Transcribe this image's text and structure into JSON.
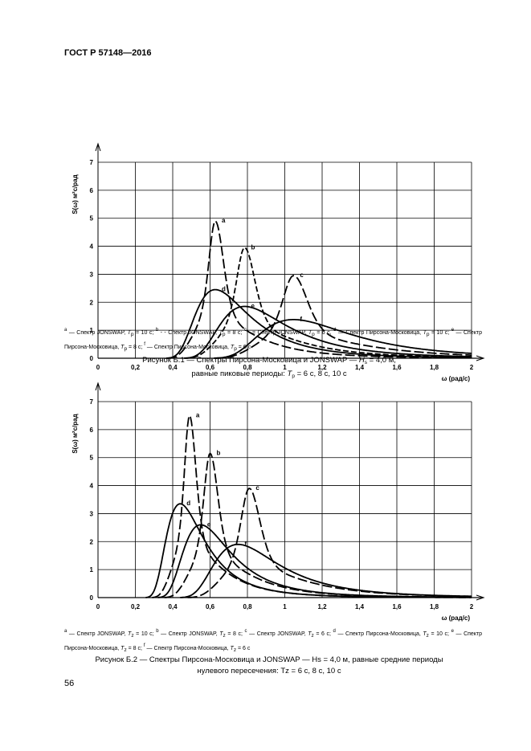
{
  "header": "ГОСТ Р 57148—2016",
  "page_number": "56",
  "figures": [
    {
      "notes": [
        {
          "mark": "a",
          "text": "— Спектр JONSWAP, ",
          "var": "T",
          "sub": "p",
          "val": " = 10 с; "
        },
        {
          "mark": "b",
          "text": "- - Спектр JONSWAP, ",
          "var": "T",
          "sub": "p",
          "val": " = 8 с; "
        },
        {
          "mark": "c",
          "text": "-·= Спектр JONSWAP, ",
          "var": "T",
          "sub": "p",
          "val": " = 6 с, "
        },
        {
          "mark": "d",
          "text": "— Спектр Пирсона-Московица, ",
          "var": "T",
          "sub": "p",
          "val": " = 10 с; "
        },
        {
          "mark": "e",
          "text": "— Спектр Пирсона-Московица, ",
          "var": "T",
          "sub": "p",
          "val": " = 8 с; "
        },
        {
          "mark": "f",
          "text": "— Спектр Пирсона-Московица, ",
          "var": "T",
          "sub": "p",
          "val": " = 6 с"
        }
      ],
      "caption_line1": "Рисунок Б.1 — Спектры Пирсона-Московица и JONSWAP — ",
      "caption_hs": "H",
      "caption_hs_sub": "s",
      "caption_hs_val": " = 4,0 м,",
      "caption_line2a": "равные пиковые периоды: ",
      "caption_tp": "T",
      "caption_tp_sub": "p",
      "caption_line2b": " = 6 с, 8 с, 10 с"
    },
    {
      "notes": [
        {
          "mark": "a",
          "text": "— Спектр JONSWAP, ",
          "var": "T",
          "sub": "z",
          "val": " = 10 с; "
        },
        {
          "mark": "b",
          "text": "— Спектр JONSWAP, ",
          "var": "T",
          "sub": "z",
          "val": " = 8 с; "
        },
        {
          "mark": "c",
          "text": "— Спектр JONSWAP, ",
          "var": "T",
          "sub": "z",
          "val": " = 6 с; "
        },
        {
          "mark": "d",
          "text": "— Спектр Пирсона-Московица, ",
          "var": "T",
          "sub": "z",
          "val": " = 10 с; "
        },
        {
          "mark": "e",
          "text": "— Спектр Пирсона-Московица, ",
          "var": "T",
          "sub": "z",
          "val": " = 8 с; "
        },
        {
          "mark": "f",
          "text": "— Спектр Пирсона-Московица, ",
          "var": "T",
          "sub": "z",
          "val": " = 6 с"
        }
      ],
      "caption_line1": "Рисунок Б.2 — Спектры Пирсона-Московица и JONSWAP — Hs = 4,0 м, равные средние периоды",
      "caption_line2": "нулевого пересечения: Tz = 6 с, 8 с, 10 с"
    }
  ],
  "chart_data": [
    {
      "type": "line",
      "ylabel": "S(ω) м²с/рад",
      "xlabel": "ω (рад/с)",
      "xlim": [
        0,
        2
      ],
      "ylim": [
        0,
        7
      ],
      "x_ticks": [
        "0",
        "0,2",
        "0,4",
        "0,6",
        "0,8",
        "1",
        "1,2",
        "1,4",
        "1,6",
        "1,8",
        "2"
      ],
      "y_ticks": [
        "0",
        "1",
        "2",
        "3",
        "4",
        "5",
        "6",
        "7"
      ],
      "grid": true,
      "series": [
        {
          "name": "a",
          "kind": "jonswap",
          "peak_omega": 0.628,
          "peak_value": 4.9,
          "dash": "long"
        },
        {
          "name": "b",
          "kind": "jonswap",
          "peak_omega": 0.785,
          "peak_value": 3.95,
          "dash": "medium"
        },
        {
          "name": "c",
          "kind": "jonswap",
          "peak_omega": 1.047,
          "peak_value": 2.95,
          "dash": "long"
        },
        {
          "name": "d",
          "kind": "pm",
          "peak_omega": 0.628,
          "peak_value": 2.45,
          "dash": "solid"
        },
        {
          "name": "e",
          "kind": "pm",
          "peak_omega": 0.785,
          "peak_value": 1.85,
          "dash": "solid"
        },
        {
          "name": "f",
          "kind": "pm",
          "peak_omega": 1.047,
          "peak_value": 1.38,
          "dash": "solid"
        }
      ]
    },
    {
      "type": "line",
      "ylabel": "S(ω) м²с/рад",
      "xlabel": "ω (рад/с)",
      "xlim": [
        0,
        2
      ],
      "ylim": [
        0,
        7
      ],
      "x_ticks": [
        "0",
        "0,2",
        "0,4",
        "0,6",
        "0,8",
        "1",
        "1,2",
        "1,4",
        "1,6",
        "1,8",
        "2"
      ],
      "y_ticks": [
        "0",
        "1",
        "2",
        "3",
        "4",
        "5",
        "6",
        "7"
      ],
      "grid": true,
      "series": [
        {
          "name": "a",
          "kind": "jonswap",
          "peak_omega": 0.49,
          "peak_value": 6.5,
          "dash": "long"
        },
        {
          "name": "b",
          "kind": "jonswap",
          "peak_omega": 0.6,
          "peak_value": 5.15,
          "dash": "long"
        },
        {
          "name": "c",
          "kind": "jonswap",
          "peak_omega": 0.81,
          "peak_value": 3.9,
          "dash": "long"
        },
        {
          "name": "d",
          "kind": "pm",
          "peak_omega": 0.44,
          "peak_value": 3.35,
          "dash": "solid"
        },
        {
          "name": "e",
          "kind": "pm",
          "peak_omega": 0.55,
          "peak_value": 2.6,
          "dash": "solid"
        },
        {
          "name": "f",
          "kind": "pm",
          "peak_omega": 0.75,
          "peak_value": 1.9,
          "dash": "solid"
        }
      ]
    }
  ]
}
